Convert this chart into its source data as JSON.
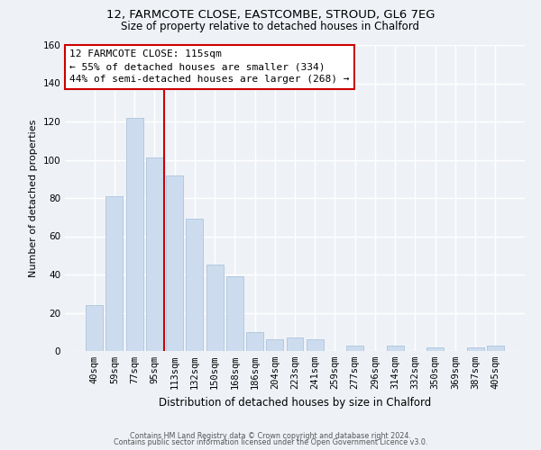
{
  "title1": "12, FARMCOTE CLOSE, EASTCOMBE, STROUD, GL6 7EG",
  "title2": "Size of property relative to detached houses in Chalford",
  "xlabel": "Distribution of detached houses by size in Chalford",
  "ylabel": "Number of detached properties",
  "bar_labels": [
    "40sqm",
    "59sqm",
    "77sqm",
    "95sqm",
    "113sqm",
    "132sqm",
    "150sqm",
    "168sqm",
    "186sqm",
    "204sqm",
    "223sqm",
    "241sqm",
    "259sqm",
    "277sqm",
    "296sqm",
    "314sqm",
    "332sqm",
    "350sqm",
    "369sqm",
    "387sqm",
    "405sqm"
  ],
  "bar_values": [
    24,
    81,
    122,
    101,
    92,
    69,
    45,
    39,
    10,
    6,
    7,
    6,
    0,
    3,
    0,
    3,
    0,
    2,
    0,
    2,
    3
  ],
  "bar_color": "#ccdcee",
  "bar_edge_color": "#adc4dc",
  "vline_x_index": 4,
  "vline_color": "#cc0000",
  "annotation_title": "12 FARMCOTE CLOSE: 115sqm",
  "annotation_line1": "← 55% of detached houses are smaller (334)",
  "annotation_line2": "44% of semi-detached houses are larger (268) →",
  "annotation_box_color": "#ffffff",
  "annotation_box_edge": "#cc0000",
  "ylim": [
    0,
    160
  ],
  "yticks": [
    0,
    20,
    40,
    60,
    80,
    100,
    120,
    140,
    160
  ],
  "footer1": "Contains HM Land Registry data © Crown copyright and database right 2024.",
  "footer2": "Contains public sector information licensed under the Open Government Licence v3.0.",
  "bg_color": "#eef2f7",
  "grid_color": "#ffffff",
  "title1_fontsize": 9.5,
  "title2_fontsize": 8.5,
  "xlabel_fontsize": 8.5,
  "ylabel_fontsize": 8,
  "tick_fontsize": 7.5,
  "annot_fontsize": 8,
  "footer_fontsize": 5.8
}
